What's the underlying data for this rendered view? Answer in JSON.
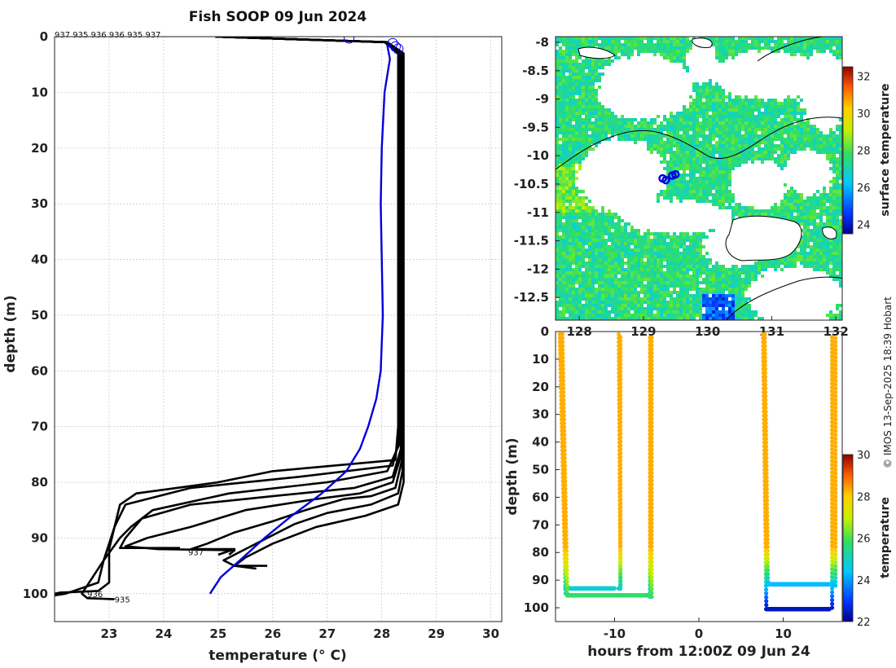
{
  "credit": "© IMOS 13-Sep-2025 18:39 Hobart",
  "colors": {
    "profile": "#000000",
    "mean_profile": "#0000dd",
    "grid": "#bbbbbb"
  },
  "chart_data": [
    {
      "id": "profiles",
      "type": "line",
      "title": "Fish SOOP 09 Jun 2024",
      "xlabel": "temperature (° C)",
      "ylabel": "depth (m)",
      "xlim": [
        22,
        30.2
      ],
      "ylim": [
        105,
        0
      ],
      "xticks": [
        23,
        24,
        25,
        26,
        27,
        28,
        29,
        30
      ],
      "yticks": [
        0,
        10,
        20,
        30,
        40,
        50,
        60,
        70,
        80,
        90,
        100
      ],
      "grid": true,
      "top_annotation": "937 935 936 936 935 937",
      "point_annotations": [
        {
          "text": "937",
          "x": 24.45,
          "y": 92.5
        },
        {
          "text": "936",
          "x": 22.6,
          "y": 100
        },
        {
          "text": "935",
          "x": 23.1,
          "y": 101
        }
      ],
      "surface_markers": [
        {
          "x": 27.4,
          "y": 0.3
        },
        {
          "x": 28.2,
          "y": 1.2
        },
        {
          "x": 28.25,
          "y": 1.8
        },
        {
          "x": 28.3,
          "y": 2.2
        }
      ],
      "series": [
        {
          "name": "profile-1",
          "points": [
            [
              24.95,
              0
            ],
            [
              28.05,
              1
            ],
            [
              28.3,
              3
            ],
            [
              28.3,
              70
            ],
            [
              28.25,
              76
            ],
            [
              26,
              78
            ],
            [
              25,
              80
            ],
            [
              23.5,
              82
            ],
            [
              23.2,
              84
            ],
            [
              23.1,
              88
            ],
            [
              23.0,
              92
            ],
            [
              23.0,
              98
            ],
            [
              22.8,
              99.5
            ],
            [
              22.1,
              99.8
            ],
            [
              22.0,
              100
            ]
          ]
        },
        {
          "name": "profile-2",
          "points": [
            [
              24.95,
              0
            ],
            [
              28.1,
              1
            ],
            [
              28.32,
              3
            ],
            [
              28.32,
              72
            ],
            [
              28.2,
              77
            ],
            [
              26.5,
              79
            ],
            [
              24.5,
              81
            ],
            [
              23.3,
              84
            ],
            [
              23.1,
              88
            ],
            [
              22.9,
              94
            ],
            [
              22.8,
              98
            ],
            [
              22.2,
              100
            ],
            [
              22.0,
              100.3
            ]
          ]
        },
        {
          "name": "profile-3",
          "points": [
            [
              24.95,
              0
            ],
            [
              28.1,
              1
            ],
            [
              28.34,
              3
            ],
            [
              28.33,
              73
            ],
            [
              28.1,
              78
            ],
            [
              27,
              80
            ],
            [
              25.2,
              82
            ],
            [
              23.8,
              85
            ],
            [
              23.4,
              88
            ],
            [
              23.2,
              90
            ],
            [
              22.9,
              94
            ],
            [
              22.7,
              97
            ],
            [
              22.5,
              100
            ],
            [
              22.6,
              100.8
            ],
            [
              23.1,
              101
            ]
          ]
        },
        {
          "name": "profile-4",
          "points": [
            [
              24.95,
              0
            ],
            [
              28.1,
              1
            ],
            [
              28.35,
              3
            ],
            [
              28.35,
              74
            ],
            [
              28.2,
              79
            ],
            [
              27.5,
              81
            ],
            [
              26,
              82.5
            ],
            [
              24.5,
              84
            ],
            [
              23.6,
              86.5
            ],
            [
              23.3,
              90
            ],
            [
              23.2,
              91.8
            ],
            [
              24.3,
              91.8
            ]
          ]
        },
        {
          "name": "profile-5",
          "points": [
            [
              24.95,
              0
            ],
            [
              28.1,
              1
            ],
            [
              28.36,
              3
            ],
            [
              28.36,
              75
            ],
            [
              28.2,
              80
            ],
            [
              27.6,
              82
            ],
            [
              26.8,
              83
            ],
            [
              25.5,
              85
            ],
            [
              24.5,
              88
            ],
            [
              23.7,
              90
            ],
            [
              23.3,
              91.5
            ],
            [
              23.9,
              92
            ],
            [
              25.3,
              92.2
            ],
            [
              25.2,
              93
            ]
          ]
        },
        {
          "name": "profile-6",
          "points": [
            [
              24.95,
              0
            ],
            [
              28.1,
              1
            ],
            [
              28.37,
              3
            ],
            [
              28.37,
              76
            ],
            [
              28.25,
              81
            ],
            [
              27.8,
              82.5
            ],
            [
              27.3,
              83
            ],
            [
              26.6,
              85
            ],
            [
              26.0,
              87
            ],
            [
              25.3,
              89
            ],
            [
              24.8,
              91
            ],
            [
              24.5,
              92
            ],
            [
              25.3,
              92
            ],
            [
              25.0,
              93
            ]
          ]
        },
        {
          "name": "profile-7",
          "points": [
            [
              24.95,
              0
            ],
            [
              28.1,
              1
            ],
            [
              28.38,
              3
            ],
            [
              28.38,
              78
            ],
            [
              28.3,
              82
            ],
            [
              27.8,
              84
            ],
            [
              27.0,
              85.5
            ],
            [
              26.4,
              87.5
            ],
            [
              25.9,
              90
            ],
            [
              25.4,
              92.5
            ],
            [
              25.1,
              94
            ],
            [
              25.3,
              95
            ],
            [
              25.9,
              95
            ]
          ]
        },
        {
          "name": "profile-8",
          "points": [
            [
              24.95,
              0
            ],
            [
              28.1,
              1
            ],
            [
              28.4,
              3
            ],
            [
              28.4,
              80
            ],
            [
              28.3,
              84
            ],
            [
              27.7,
              86
            ],
            [
              26.8,
              88
            ],
            [
              26.0,
              91
            ],
            [
              25.5,
              93.5
            ],
            [
              25.3,
              95
            ],
            [
              25.7,
              95.5
            ]
          ]
        }
      ],
      "mean_profile": [
        [
          28.1,
          1.5
        ],
        [
          28.15,
          4
        ],
        [
          28.05,
          10
        ],
        [
          28.0,
          20
        ],
        [
          27.98,
          30
        ],
        [
          28.0,
          40
        ],
        [
          28.02,
          50
        ],
        [
          27.98,
          60
        ],
        [
          27.9,
          65
        ],
        [
          27.75,
          70
        ],
        [
          27.6,
          74
        ],
        [
          27.35,
          78
        ],
        [
          26.9,
          82
        ],
        [
          26.35,
          86
        ],
        [
          25.85,
          90
        ],
        [
          25.4,
          94
        ],
        [
          25.05,
          97
        ],
        [
          24.85,
          100
        ]
      ]
    },
    {
      "id": "sst_map",
      "type": "heatmap",
      "colorbar_label": "surface temperature",
      "colorbar_ticks": [
        24,
        26,
        28,
        30,
        32
      ],
      "colorbar_range": [
        23.5,
        32.5
      ],
      "xlim": [
        127.63,
        132.1
      ],
      "ylim": [
        -12.9,
        -7.9
      ],
      "xticks": [
        128,
        129,
        130,
        131,
        132
      ],
      "xtick_labels": [
        "128",
        "129",
        "130",
        "131",
        "132"
      ],
      "yticks": [
        -8,
        -8.5,
        -9,
        -9.5,
        -10,
        -10.5,
        -11,
        -11.5,
        -12,
        -12.5
      ],
      "ytick_labels": [
        "-8",
        "-8.5",
        "-9",
        "-9.5",
        "-10",
        "-10.5",
        "-11",
        "-11.5",
        "-12",
        "-12.5"
      ],
      "dominant_value": 27.5,
      "track_points": [
        [
          129.3,
          -10.4
        ],
        [
          129.35,
          -10.43
        ],
        [
          129.45,
          -10.35
        ],
        [
          129.5,
          -10.33
        ]
      ]
    },
    {
      "id": "time_depth",
      "type": "scatter",
      "xlabel": "hours from 12:00Z 09 Jun 24",
      "ylabel": "depth (m)",
      "xlim": [
        -17,
        17
      ],
      "ylim": [
        105,
        0
      ],
      "xticks": [
        -10,
        0,
        10
      ],
      "xtick_labels": [
        "-10",
        "0",
        "10"
      ],
      "yticks": [
        0,
        10,
        20,
        30,
        40,
        50,
        60,
        70,
        80,
        90,
        100
      ],
      "colorbar_label": "temperature",
      "colorbar_ticks": [
        22,
        24,
        26,
        28,
        30
      ],
      "colorbar_range": [
        22,
        30
      ],
      "casts": [
        {
          "t0": -16.5,
          "t1": -15.8,
          "bottom": 96,
          "up_time": -5.8,
          "floor_start": -15.8,
          "floor_end": -10,
          "floor_depth": 93,
          "floor_temp": 24.8
        },
        {
          "t0": -16.2,
          "t1": -15.6,
          "bottom": 96,
          "up_time": -5.6,
          "floor_start": -15.6,
          "floor_end": -5.8,
          "floor_depth": 95.5,
          "floor_temp": 25.8
        },
        {
          "t0": -9.5,
          "t1": -9.3,
          "bottom": 93,
          "up_time": -9.3,
          "floor_start": -9.5,
          "floor_end": -9.3,
          "floor_depth": 93,
          "floor_temp": 24.8
        },
        {
          "t0": 7.6,
          "t1": 8.0,
          "bottom": 100,
          "up_time": 15.8,
          "floor_start": 8.0,
          "floor_end": 15.5,
          "floor_depth": 100.5,
          "floor_temp": 22.4
        },
        {
          "t0": 7.8,
          "t1": 8.2,
          "bottom": 92,
          "up_time": 16.2,
          "floor_start": 8.2,
          "floor_end": 16.0,
          "floor_depth": 91.5,
          "floor_temp": 24.3
        }
      ],
      "surface_temp": 28.3
    }
  ]
}
